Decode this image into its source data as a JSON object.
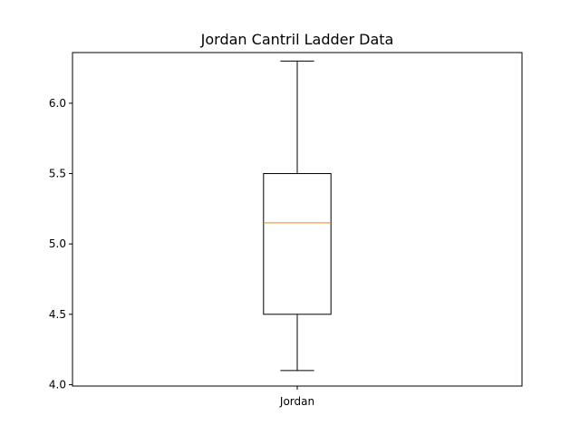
{
  "chart_data": {
    "type": "box",
    "title": "Jordan Cantril Ladder Data",
    "xlabel": "",
    "ylabel": "",
    "ylim": [
      3.99,
      6.36
    ],
    "yticks": [
      4.0,
      4.5,
      5.0,
      5.5,
      6.0
    ],
    "ytick_labels": [
      "4.0",
      "4.5",
      "5.0",
      "5.5",
      "6.0"
    ],
    "categories": [
      "Jordan"
    ],
    "boxes": [
      {
        "category": "Jordan",
        "whisker_low": 4.1,
        "q1": 4.5,
        "median": 5.15,
        "q3": 5.5,
        "whisker_high": 6.3
      }
    ],
    "colors": {
      "box": "#000000",
      "median": "#ff7f0e"
    },
    "grid": false,
    "legend": "none"
  }
}
